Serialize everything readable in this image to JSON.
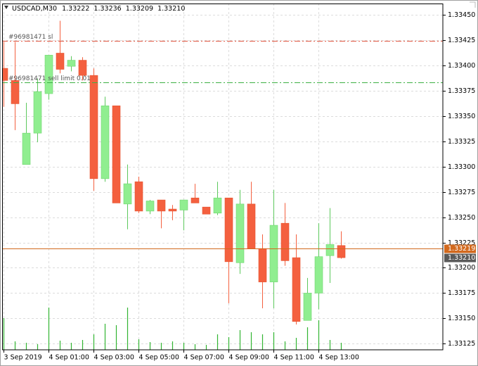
{
  "chart_data": {
    "type": "candlestick",
    "title": "USDCAD,M30",
    "header_values": [
      "1.33222",
      "1.33236",
      "1.33209",
      "1.33210"
    ],
    "categories": [
      "3 Sep 2019",
      null,
      null,
      null,
      "4 Sep 01:00",
      null,
      null,
      null,
      "4 Sep 03:00",
      null,
      null,
      null,
      "4 Sep 05:00",
      null,
      null,
      null,
      "4 Sep 07:00",
      null,
      null,
      null,
      "4 Sep 09:00",
      null,
      null,
      null,
      "4 Sep 11:00",
      null,
      null,
      null,
      "4 Sep 13:00",
      null,
      null
    ],
    "open": [
      1.33397,
      1.33385,
      1.33302,
      1.33333,
      1.33372,
      1.33412,
      1.33399,
      1.33405,
      1.3339,
      1.33288,
      1.3336,
      1.33263,
      1.33285,
      1.33256,
      1.33267,
      1.33258,
      1.33257,
      1.33269,
      1.3326,
      1.33254,
      1.33269,
      1.33205,
      1.33263,
      1.33219,
      1.33186,
      1.33244,
      1.3321,
      1.33148,
      1.33175,
      1.33212,
      1.33222
    ],
    "high": [
      1.33423,
      1.33423,
      1.33363,
      1.33387,
      1.3341,
      1.33444,
      1.33409,
      1.33408,
      1.33397,
      1.33369,
      1.3336,
      1.33302,
      1.3329,
      1.33267,
      1.33267,
      1.33262,
      1.33267,
      1.33283,
      1.3326,
      1.33285,
      1.33269,
      1.33277,
      1.33285,
      1.33233,
      1.33277,
      1.33264,
      1.33233,
      1.3319,
      1.33244,
      1.33259,
      1.33236
    ],
    "low": [
      1.33359,
      1.33336,
      1.33302,
      1.33324,
      1.33366,
      1.33392,
      1.33394,
      1.33385,
      1.33276,
      1.33285,
      1.33264,
      1.33238,
      1.33254,
      1.33253,
      1.33239,
      1.33247,
      1.33237,
      1.33264,
      1.33253,
      1.33252,
      1.33165,
      1.33194,
      1.33219,
      1.3316,
      1.3316,
      1.33202,
      1.33144,
      1.33148,
      1.33159,
      1.33185,
      1.33209
    ],
    "close": [
      1.33385,
      1.33362,
      1.33333,
      1.33374,
      1.3341,
      1.33396,
      1.33405,
      1.3339,
      1.33288,
      1.3336,
      1.33264,
      1.33283,
      1.33256,
      1.33266,
      1.33256,
      1.33256,
      1.33267,
      1.33264,
      1.33253,
      1.33269,
      1.33206,
      1.33263,
      1.33219,
      1.33186,
      1.33242,
      1.33207,
      1.33147,
      1.33175,
      1.33211,
      1.33223,
      1.3321
    ],
    "volumes": [
      45,
      12,
      10,
      8,
      60,
      13,
      10,
      14,
      22,
      37,
      35,
      60,
      15,
      11,
      10,
      12,
      10,
      8,
      7,
      22,
      18,
      28,
      25,
      22,
      25,
      12,
      17,
      32,
      42,
      14,
      10
    ],
    "volume_ylim": [
      0,
      492
    ],
    "up_color": "#90ee90",
    "down_color": "#f4603f",
    "volume_color": "#32b432",
    "ylim": [
      1.33119,
      1.33461
    ],
    "yticks": [
      {
        "value": 1.3345,
        "label": "1.33450"
      },
      1.33425,
      {
        "value": 1.334,
        "label": "1.33400"
      },
      1.33375,
      {
        "value": 1.3335,
        "label": "1.33350"
      },
      1.33325,
      {
        "value": 1.333,
        "label": "1.33300"
      },
      1.33275,
      {
        "value": 1.3325,
        "label": "1.33250"
      },
      1.33225,
      {
        "value": 1.332,
        "label": "1.33200"
      },
      1.33175,
      {
        "value": 1.3315,
        "label": "1.33150"
      },
      1.33125
    ],
    "grid": true,
    "levels": [
      {
        "label": "#96981471 sl",
        "value": 1.33424,
        "color": "#e0523c"
      },
      {
        "label": "#96981471 sell limit 0.01",
        "value": 1.33383,
        "color": "#3cb043"
      }
    ],
    "bid": {
      "value": 1.33219,
      "label": "1.33219",
      "color": "#d2691e"
    },
    "last_price": {
      "value": 1.3321,
      "label": "1.33210",
      "color": "#5a5a5a"
    }
  }
}
